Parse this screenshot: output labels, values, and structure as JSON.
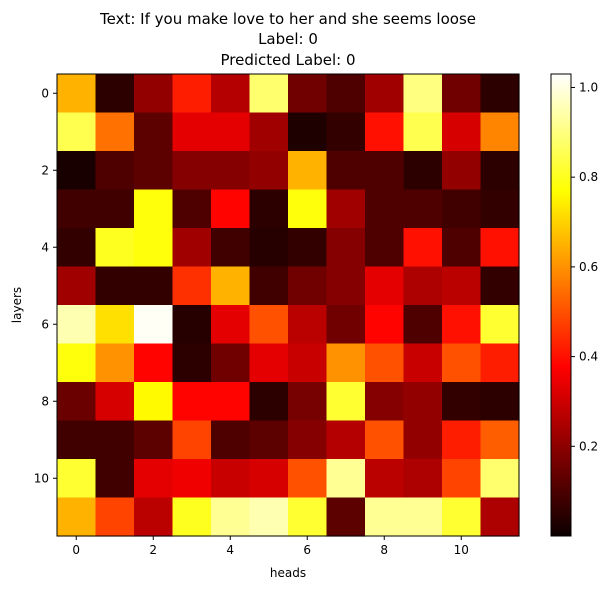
{
  "chart_data": {
    "type": "heatmap",
    "title_lines": [
      "Text: If you make love to her and she seems loose",
      "Label: 0",
      "Predicted Label: 0"
    ],
    "xlabel": "heads",
    "ylabel": "layers",
    "x_ticks": [
      "0",
      "2",
      "4",
      "6",
      "8",
      "10"
    ],
    "y_ticks": [
      "0",
      "2",
      "4",
      "6",
      "8",
      "10"
    ],
    "x_tick_values": [
      0,
      2,
      4,
      6,
      8,
      10
    ],
    "y_tick_values": [
      0,
      2,
      4,
      6,
      8,
      10
    ],
    "colormap": "hot",
    "color_range": [
      0.0,
      1.03
    ],
    "colorbar_ticks": [
      "0.2",
      "0.4",
      "0.6",
      "0.8",
      "1.0"
    ],
    "colorbar_tick_values": [
      0.2,
      0.4,
      0.6,
      0.8,
      1.0
    ],
    "rows": 12,
    "cols": 12,
    "values": [
      [
        0.65,
        0.05,
        0.2,
        0.42,
        0.25,
        0.88,
        0.15,
        0.1,
        0.22,
        0.9,
        0.15,
        0.05
      ],
      [
        0.85,
        0.55,
        0.12,
        0.32,
        0.32,
        0.22,
        0.03,
        0.06,
        0.4,
        0.85,
        0.3,
        0.58
      ],
      [
        0.02,
        0.1,
        0.12,
        0.18,
        0.18,
        0.2,
        0.65,
        0.1,
        0.1,
        0.05,
        0.2,
        0.05
      ],
      [
        0.08,
        0.08,
        0.78,
        0.1,
        0.38,
        0.05,
        0.78,
        0.22,
        0.1,
        0.1,
        0.08,
        0.06
      ],
      [
        0.06,
        0.8,
        0.78,
        0.22,
        0.08,
        0.04,
        0.06,
        0.18,
        0.1,
        0.4,
        0.1,
        0.4
      ],
      [
        0.22,
        0.06,
        0.06,
        0.45,
        0.65,
        0.08,
        0.15,
        0.18,
        0.32,
        0.24,
        0.26,
        0.06
      ],
      [
        0.95,
        0.72,
        1.02,
        0.04,
        0.32,
        0.5,
        0.26,
        0.15,
        0.38,
        0.1,
        0.4,
        0.82
      ],
      [
        0.78,
        0.6,
        0.38,
        0.05,
        0.15,
        0.32,
        0.28,
        0.6,
        0.5,
        0.28,
        0.5,
        0.42
      ],
      [
        0.14,
        0.3,
        0.76,
        0.38,
        0.38,
        0.05,
        0.16,
        0.82,
        0.18,
        0.2,
        0.06,
        0.05
      ],
      [
        0.08,
        0.08,
        0.12,
        0.48,
        0.1,
        0.12,
        0.18,
        0.25,
        0.5,
        0.2,
        0.42,
        0.52
      ],
      [
        0.82,
        0.08,
        0.32,
        0.34,
        0.28,
        0.3,
        0.5,
        0.92,
        0.26,
        0.24,
        0.48,
        0.88
      ],
      [
        0.65,
        0.48,
        0.26,
        0.8,
        0.92,
        0.95,
        0.82,
        0.12,
        0.92,
        0.92,
        0.82,
        0.24
      ]
    ]
  }
}
